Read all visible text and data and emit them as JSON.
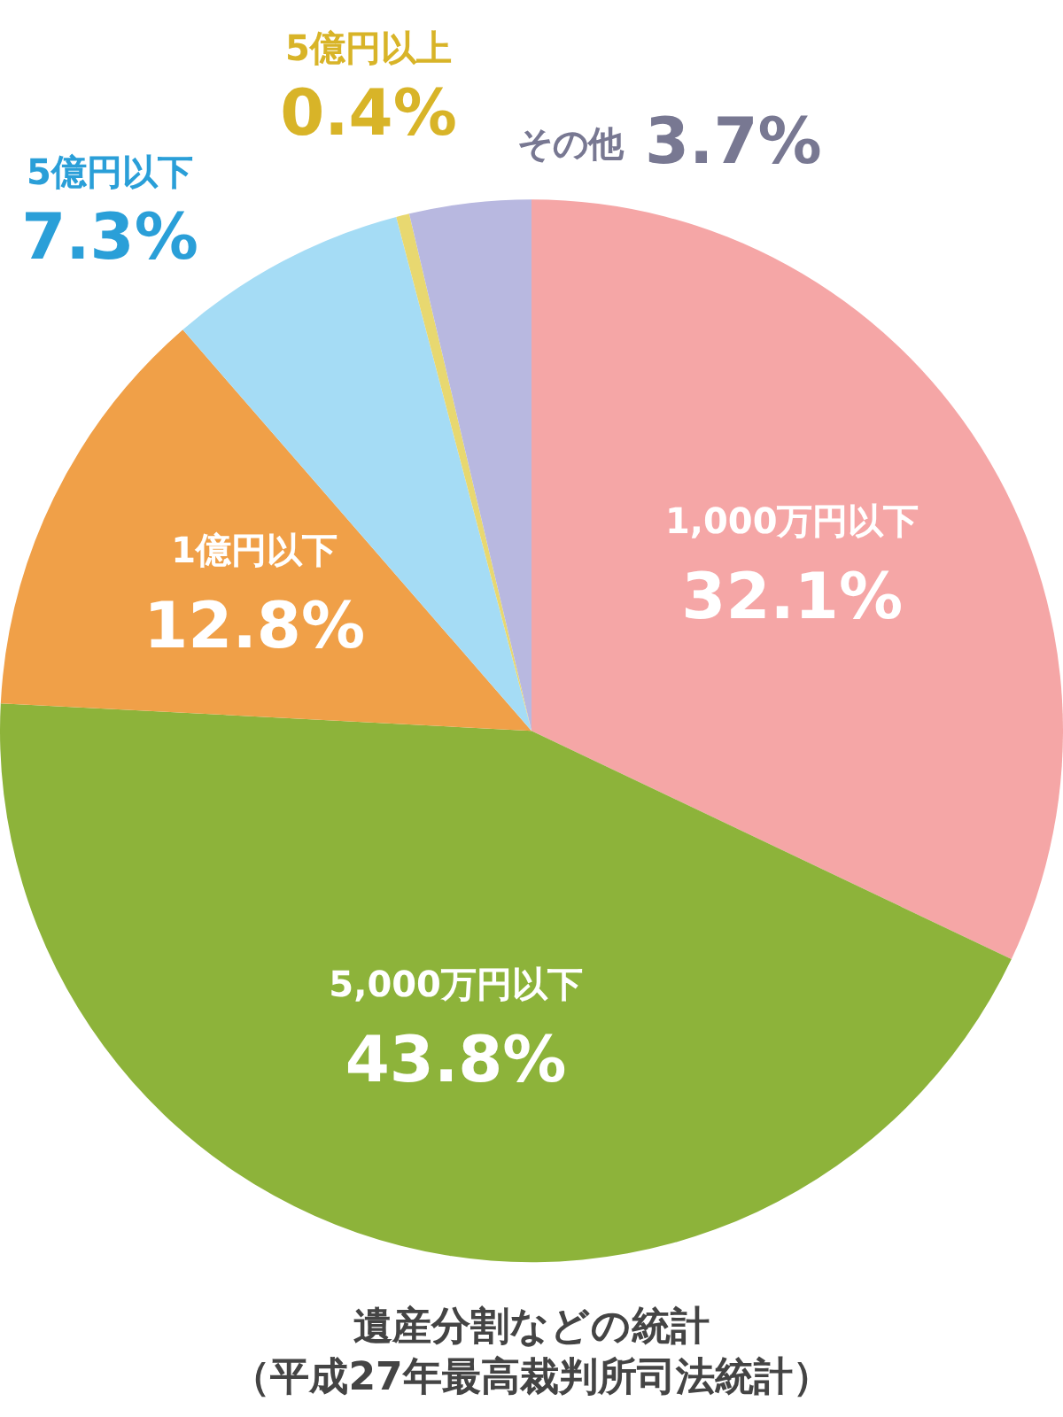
{
  "chart_data": {
    "type": "pie",
    "title": "遺産分割などの統計",
    "annotations": [
      "（平成27年最高裁判所司法統計）"
    ],
    "categories": [
      "1,000万円以下",
      "5,000万円以下",
      "1億円以下",
      "5億円以下",
      "5億円以上",
      "その他"
    ],
    "values": [
      32.1,
      43.8,
      12.8,
      7.3,
      0.4,
      3.7
    ],
    "value_labels": [
      "32.1%",
      "43.8%",
      "12.8%",
      "7.3%",
      "0.4%",
      "3.7%"
    ],
    "colors": [
      "#f5a6a6",
      "#8db33a",
      "#f0a048",
      "#a5dcf5",
      "#e8d870",
      "#b8b8e0"
    ],
    "legend": false
  }
}
